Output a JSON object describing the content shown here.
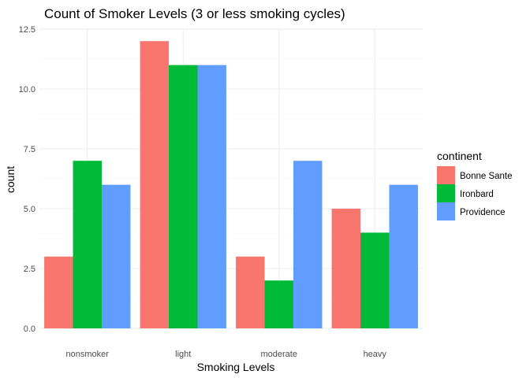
{
  "chart_data": {
    "type": "bar",
    "title": "Count of Smoker Levels (3 or less smoking cycles)",
    "xlabel": "Smoking Levels",
    "ylabel": "count",
    "categories": [
      "nonsmoker",
      "light",
      "moderate",
      "heavy"
    ],
    "series": [
      {
        "name": "Bonne Sante",
        "color": "#F8766D",
        "values": [
          3,
          12,
          3,
          5
        ]
      },
      {
        "name": "Ironbard",
        "color": "#00BA38",
        "values": [
          7,
          11,
          2,
          4
        ]
      },
      {
        "name": "Providence",
        "color": "#619CFF",
        "values": [
          6,
          11,
          7,
          6
        ]
      }
    ],
    "ylim": [
      0,
      12.5
    ],
    "yticks": [
      "0.0",
      "2.5",
      "5.0",
      "7.5",
      "10.0",
      "12.5"
    ],
    "grid": true,
    "legend": {
      "title": "continent",
      "placement": "right"
    }
  }
}
